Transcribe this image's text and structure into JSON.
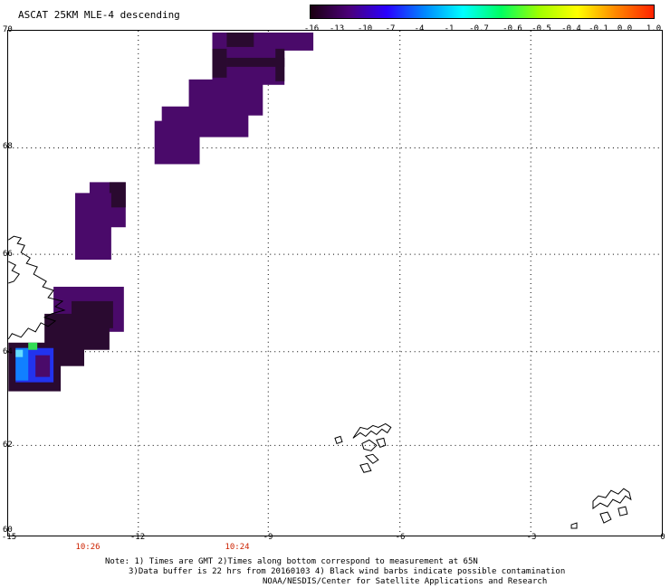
{
  "title": "ASCAT 25KM MLE-4 descending",
  "colorbar": {
    "labels": [
      "-16",
      "-13",
      "-10",
      "-7",
      "-4",
      "-1",
      "-0.7",
      "-0.6",
      "-0.5",
      "-0.4",
      "-0.1",
      "0.0",
      "1.0"
    ],
    "colors": [
      "#1a0010",
      "#4b0078",
      "#2a00ff",
      "#0088ff",
      "#00ffff",
      "#00ff60",
      "#a0ff00",
      "#ffff00",
      "#ff8800",
      "#ff2200"
    ]
  },
  "map": {
    "lat_labels": [
      "70",
      "68",
      "66",
      "64",
      "62",
      "60"
    ],
    "lon_labels": [
      "-15",
      "-12",
      "-9",
      "-6",
      "-3",
      "0"
    ],
    "time_labels": [
      "10:26",
      "10:24"
    ],
    "cell_colors": {
      "dark": "#2a0a30",
      "purple": "#4a0a6a",
      "blue": "#2233ee",
      "light_blue": "#1180ff",
      "cyan": "#66ddff",
      "green": "#33dd55"
    }
  },
  "notes": {
    "line1": "Note: 1) Times are GMT 2)Times along bottom correspond to measurement at 65N",
    "line2": "3)Data buffer is 22 hrs from 20160103 4) Black wind barbs indicate possible contamination",
    "line3": "NOAA/NESDIS/Center for Satellite Applications and Research"
  }
}
